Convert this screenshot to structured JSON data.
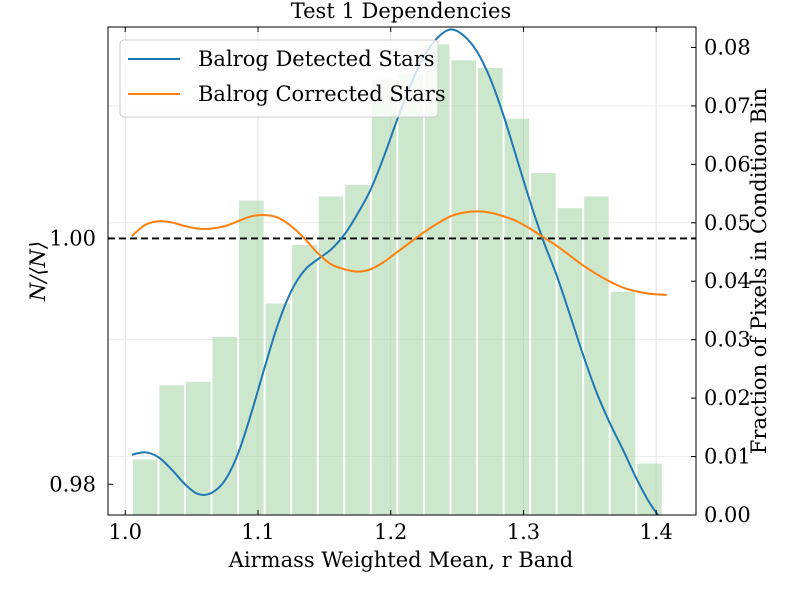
{
  "chart_data": {
    "type": "line",
    "title": "Test 1 Dependencies",
    "xlabel": "Airmass Weighted Mean, r Band",
    "ylabel": "N/⟨N⟩",
    "y2label": "Fraction of Pixels in Condition Bin",
    "xlim": [
      0.987,
      1.43
    ],
    "ylim": [
      0.9775,
      1.0172
    ],
    "y2lim": [
      0.0,
      0.0835
    ],
    "xticks": [
      1.0,
      1.1,
      1.2,
      1.3,
      1.4
    ],
    "xtick_labels": [
      "1.0",
      "1.1",
      "1.2",
      "1.3",
      "1.4"
    ],
    "yticks": [
      0.98,
      1.0
    ],
    "ytick_labels": [
      "0.98",
      "1.00"
    ],
    "y2ticks": [
      0.0,
      0.01,
      0.02,
      0.03,
      0.04,
      0.05,
      0.06,
      0.07,
      0.08
    ],
    "y2tick_labels": [
      "0.00",
      "0.01",
      "0.02",
      "0.03",
      "0.04",
      "0.05",
      "0.06",
      "0.07",
      "0.08"
    ],
    "reference_line_y": 1.0,
    "grid": true,
    "legend_position": "top-left",
    "histogram": {
      "color": "#a9d5a9",
      "bin_edges": [
        1.005,
        1.025,
        1.045,
        1.065,
        1.085,
        1.105,
        1.125,
        1.145,
        1.165,
        1.185,
        1.205,
        1.225,
        1.245,
        1.265,
        1.285,
        1.305,
        1.325,
        1.345,
        1.365,
        1.385,
        1.405
      ],
      "values": [
        0.0095,
        0.0222,
        0.0228,
        0.0305,
        0.0538,
        0.0362,
        0.0462,
        0.0545,
        0.0565,
        0.0745,
        0.0755,
        0.0805,
        0.0778,
        0.0765,
        0.0678,
        0.0585,
        0.0525,
        0.0545,
        0.0382,
        0.0088
      ]
    },
    "series": [
      {
        "name": "Balrog Detected Stars",
        "color": "#1f77b4",
        "x": [
          1.005,
          1.015,
          1.025,
          1.035,
          1.045,
          1.055,
          1.065,
          1.075,
          1.085,
          1.095,
          1.105,
          1.115,
          1.125,
          1.135,
          1.145,
          1.155,
          1.165,
          1.175,
          1.185,
          1.195,
          1.205,
          1.215,
          1.225,
          1.235,
          1.245,
          1.255,
          1.265,
          1.275,
          1.285,
          1.295,
          1.305,
          1.315,
          1.325,
          1.335,
          1.345,
          1.355,
          1.365,
          1.375,
          1.385,
          1.395,
          1.408
        ],
        "values": [
          0.9824,
          0.9826,
          0.9822,
          0.9812,
          0.98,
          0.9792,
          0.9793,
          0.9803,
          0.9825,
          0.9858,
          0.9895,
          0.993,
          0.9957,
          0.9974,
          0.9983,
          0.9991,
          1.0003,
          1.002,
          1.004,
          1.0067,
          1.0097,
          1.0125,
          1.0148,
          1.0163,
          1.017,
          1.0165,
          1.0152,
          1.013,
          1.01,
          1.0065,
          1.003,
          0.9998,
          0.997,
          0.9938,
          0.9905,
          0.9875,
          0.985,
          0.9828,
          0.9805,
          0.9785,
          0.9765
        ]
      },
      {
        "name": "Balrog Corrected Stars",
        "color": "#ff7f0e",
        "x": [
          1.005,
          1.015,
          1.025,
          1.035,
          1.045,
          1.055,
          1.065,
          1.075,
          1.085,
          1.095,
          1.105,
          1.115,
          1.125,
          1.135,
          1.145,
          1.155,
          1.165,
          1.175,
          1.185,
          1.195,
          1.205,
          1.215,
          1.225,
          1.235,
          1.245,
          1.255,
          1.265,
          1.275,
          1.285,
          1.295,
          1.305,
          1.315,
          1.325,
          1.335,
          1.345,
          1.355,
          1.365,
          1.375,
          1.385,
          1.395,
          1.408
        ],
        "values": [
          1.0002,
          1.0011,
          1.0014,
          1.0013,
          1.001,
          1.0008,
          1.0008,
          1.001,
          1.0014,
          1.0018,
          1.0019,
          1.0017,
          1.001,
          1.0,
          0.9988,
          0.9979,
          0.9975,
          0.9973,
          0.9975,
          0.9981,
          0.9989,
          0.9997,
          1.0005,
          1.0012,
          1.0018,
          1.0021,
          1.0022,
          1.0021,
          1.0018,
          1.0014,
          1.0008,
          1.0001,
          0.9994,
          0.9986,
          0.9978,
          0.9971,
          0.9965,
          0.996,
          0.9957,
          0.9955,
          0.9954
        ]
      }
    ]
  }
}
